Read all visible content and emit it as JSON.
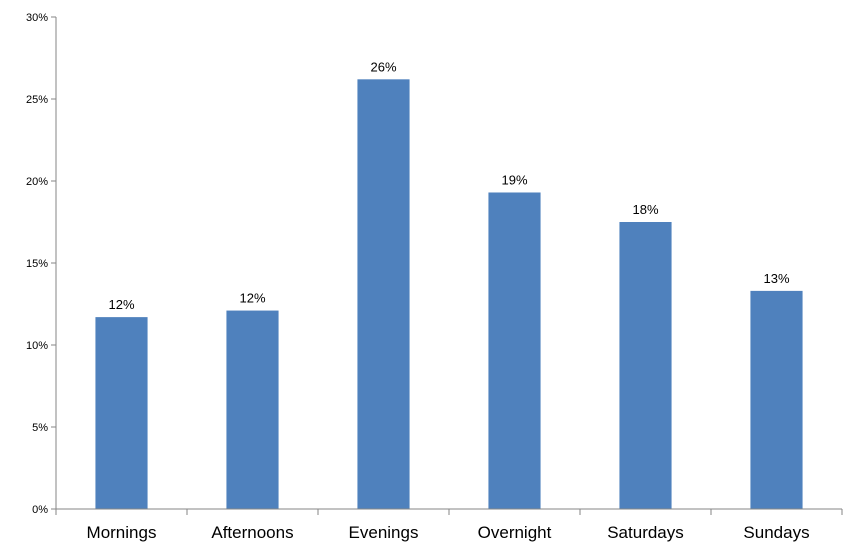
{
  "chart_data": {
    "type": "bar",
    "categories": [
      "Mornings",
      "Afternoons",
      "Evenings",
      "Overnight",
      "Saturdays",
      "Sundays"
    ],
    "values": [
      11.7,
      12.1,
      26.2,
      19.3,
      17.5,
      13.3
    ],
    "data_labels": [
      "12%",
      "12%",
      "26%",
      "19%",
      "18%",
      "13%"
    ],
    "y_ticks": [
      0,
      5,
      10,
      15,
      20,
      25,
      30
    ],
    "y_tick_labels": [
      "0%",
      "5%",
      "10%",
      "15%",
      "20%",
      "25%",
      "30%"
    ],
    "ylim": [
      0,
      30
    ],
    "grid": false,
    "legend": "none",
    "bar_color": "#4F81BD"
  }
}
